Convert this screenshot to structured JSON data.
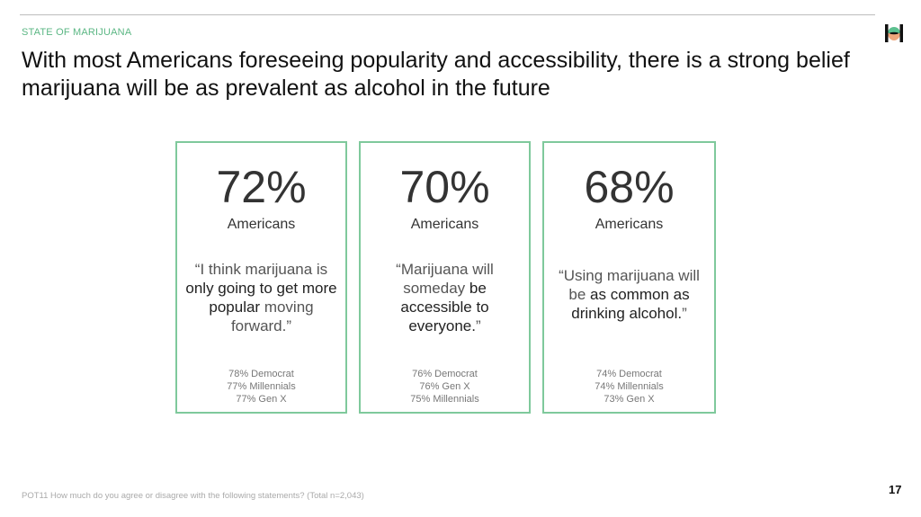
{
  "header": {
    "kicker": "STATE OF MARIJUANA",
    "title": "With most Americans foreseeing popularity and accessibility, there is a strong belief marijuana will be as prevalent as alcohol in the future",
    "logo_colors": {
      "bars": "#111111",
      "top": "#5bc08f",
      "bottom": "#f0a77c"
    }
  },
  "cards": [
    {
      "percent": "72%",
      "label": "Americans",
      "quote": [
        {
          "t": "“I think marijuana is ",
          "e": false
        },
        {
          "t": "only going to get more popular",
          "e": true
        },
        {
          "t": " moving forward.”",
          "e": false
        }
      ],
      "stats": [
        "78% Democrat",
        "77% Millennials",
        "77% Gen X"
      ]
    },
    {
      "percent": "70%",
      "label": "Americans",
      "quote": [
        {
          "t": "“Marijuana will someday ",
          "e": false
        },
        {
          "t": "be accessible to everyone.",
          "e": true
        },
        {
          "t": "”",
          "e": false
        }
      ],
      "stats": [
        "76% Democrat",
        "76% Gen X",
        "75% Millennials"
      ]
    },
    {
      "percent": "68%",
      "label": "Americans",
      "quote": [
        {
          "t": "“Using marijuana will be ",
          "e": false
        },
        {
          "t": "as common as drinking alcohol.",
          "e": true
        },
        {
          "t": "”",
          "e": false
        }
      ],
      "stats": [
        "74% Democrat",
        "74% Millennials",
        "73% Gen X"
      ]
    }
  ],
  "footer": {
    "note": "POT11 How much do you agree or disagree with the following statements? (Total n=2,043)",
    "page_number": "17"
  },
  "colors": {
    "accent": "#5bb784",
    "card_border": "#7fc99c"
  }
}
